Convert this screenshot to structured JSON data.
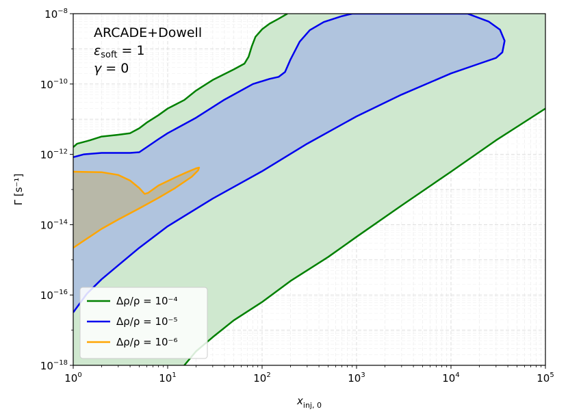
{
  "chart_data": {
    "type": "area",
    "x_scale": "log",
    "y_scale": "log",
    "xlim": [
      1,
      100000
    ],
    "ylim": [
      1e-18,
      1e-08
    ],
    "xlabel": "x_inj,0",
    "ylabel": "Γ [s⁻¹]",
    "x_ticks": [
      {
        "value": 1,
        "base": "10",
        "exp": "0"
      },
      {
        "value": 10,
        "base": "10",
        "exp": "1"
      },
      {
        "value": 100,
        "base": "10",
        "exp": "2"
      },
      {
        "value": 1000,
        "base": "10",
        "exp": "3"
      },
      {
        "value": 10000,
        "base": "10",
        "exp": "4"
      },
      {
        "value": 100000,
        "base": "10",
        "exp": "5"
      }
    ],
    "y_ticks": [
      {
        "value": 1e-18,
        "base": "10",
        "exp": "−18"
      },
      {
        "value": 1e-16,
        "base": "10",
        "exp": "−16"
      },
      {
        "value": 1e-14,
        "base": "10",
        "exp": "−14"
      },
      {
        "value": 1e-12,
        "base": "10",
        "exp": "−12"
      },
      {
        "value": 1e-10,
        "base": "10",
        "exp": "−10"
      },
      {
        "value": 1e-08,
        "base": "10",
        "exp": "−8"
      }
    ],
    "grid": true,
    "legend_position": "lower-left",
    "annotations": [
      "ARCADE+Dowell",
      "ε_soft = 1",
      "γ = 0"
    ],
    "series": [
      {
        "name": "Δρ/ρ = 10⁻⁴",
        "color": "#008000",
        "fill": "#cfe8cf",
        "upper": [
          [
            1,
            1.6e-12
          ],
          [
            1.1,
            2e-12
          ],
          [
            1.5,
            2.5e-12
          ],
          [
            2,
            3.2e-12
          ],
          [
            3,
            3.6e-12
          ],
          [
            4,
            4e-12
          ],
          [
            5,
            5.5e-12
          ],
          [
            6,
            8e-12
          ],
          [
            8,
            1.3e-11
          ],
          [
            10,
            2e-11
          ],
          [
            15,
            3.5e-11
          ],
          [
            20,
            6.5e-11
          ],
          [
            30,
            1.3e-10
          ],
          [
            50,
            2.6e-10
          ],
          [
            65,
            3.8e-10
          ],
          [
            72,
            6e-10
          ],
          [
            78,
            1.2e-09
          ],
          [
            85,
            2.2e-09
          ],
          [
            100,
            3.6e-09
          ],
          [
            120,
            5.2e-09
          ],
          [
            150,
            7.2e-09
          ],
          [
            185,
            1e-08
          ]
        ],
        "lower": [
          [
            15,
            1e-18
          ],
          [
            20,
            2.5e-18
          ],
          [
            30,
            6.3e-18
          ],
          [
            50,
            1.9e-17
          ],
          [
            100,
            6.3e-17
          ],
          [
            200,
            2.5e-16
          ],
          [
            500,
            1.2e-15
          ],
          [
            1000,
            4.5e-15
          ],
          [
            3000,
            3.5e-14
          ],
          [
            10000,
            3.2e-13
          ],
          [
            30000,
            2.5e-12
          ],
          [
            100000,
            2e-11
          ]
        ],
        "right_edge": [
          [
            100000,
            1e-08
          ],
          [
            100000,
            2e-11
          ]
        ]
      },
      {
        "name": "Δρ/ρ = 10⁻⁵",
        "color": "#0000ee",
        "fill": "#b0c4de",
        "upper": [
          [
            1,
            8.3e-13
          ],
          [
            1.3,
            1e-12
          ],
          [
            2,
            1.1e-12
          ],
          [
            4,
            1.1e-12
          ],
          [
            5,
            1.15e-12
          ],
          [
            6,
            1.6e-12
          ],
          [
            8,
            2.7e-12
          ],
          [
            10,
            4e-12
          ],
          [
            20,
            1.1e-11
          ],
          [
            40,
            3.6e-11
          ],
          [
            80,
            1e-10
          ],
          [
            120,
            1.4e-10
          ],
          [
            150,
            1.6e-10
          ],
          [
            175,
            2.2e-10
          ],
          [
            200,
            5e-10
          ],
          [
            250,
            1.6e-09
          ],
          [
            320,
            3.4e-09
          ],
          [
            450,
            5.8e-09
          ],
          [
            700,
            8.5e-09
          ],
          [
            900,
            1e-08
          ]
        ],
        "right": [
          [
            15000,
            1e-08
          ],
          [
            25000,
            6e-09
          ],
          [
            33000,
            3.5e-09
          ],
          [
            37000,
            1.7e-09
          ],
          [
            35000,
            8e-10
          ],
          [
            30000,
            5.5e-10
          ],
          [
            20000,
            3.8e-10
          ],
          [
            10000,
            2e-10
          ],
          [
            3000,
            5e-11
          ],
          [
            1000,
            1.2e-11
          ],
          [
            300,
            2e-12
          ],
          [
            100,
            3.3e-13
          ],
          [
            30,
            5.5e-14
          ],
          [
            10,
            9e-15
          ],
          [
            5,
            2.2e-15
          ],
          [
            3,
            7e-16
          ],
          [
            2,
            2.8e-16
          ],
          [
            1.4,
            1.1e-16
          ],
          [
            1,
            3.2e-17
          ]
        ]
      },
      {
        "name": "Δρ/ρ = 10⁻⁶",
        "color": "#ffa500",
        "fill": "#b8b8a8",
        "upper": [
          [
            1,
            3.2e-13
          ],
          [
            2,
            3.1e-13
          ],
          [
            3,
            2.6e-13
          ],
          [
            4,
            1.8e-13
          ],
          [
            5,
            1.1e-13
          ],
          [
            5.7,
            7.5e-14
          ],
          [
            6.2,
            8e-14
          ],
          [
            8,
            1.3e-13
          ],
          [
            12,
            2.2e-13
          ],
          [
            16,
            3.1e-13
          ],
          [
            20,
            4e-13
          ],
          [
            21.5,
            4.2e-13
          ]
        ],
        "lower": [
          [
            21.5,
            4.2e-13
          ],
          [
            21,
            3.5e-13
          ],
          [
            18,
            2.3e-13
          ],
          [
            12,
            1.1e-13
          ],
          [
            8,
            5.8e-14
          ],
          [
            5,
            2.9e-14
          ],
          [
            3,
            1.4e-14
          ],
          [
            2,
            7.6e-15
          ],
          [
            1,
            2.2e-15
          ]
        ]
      }
    ]
  }
}
